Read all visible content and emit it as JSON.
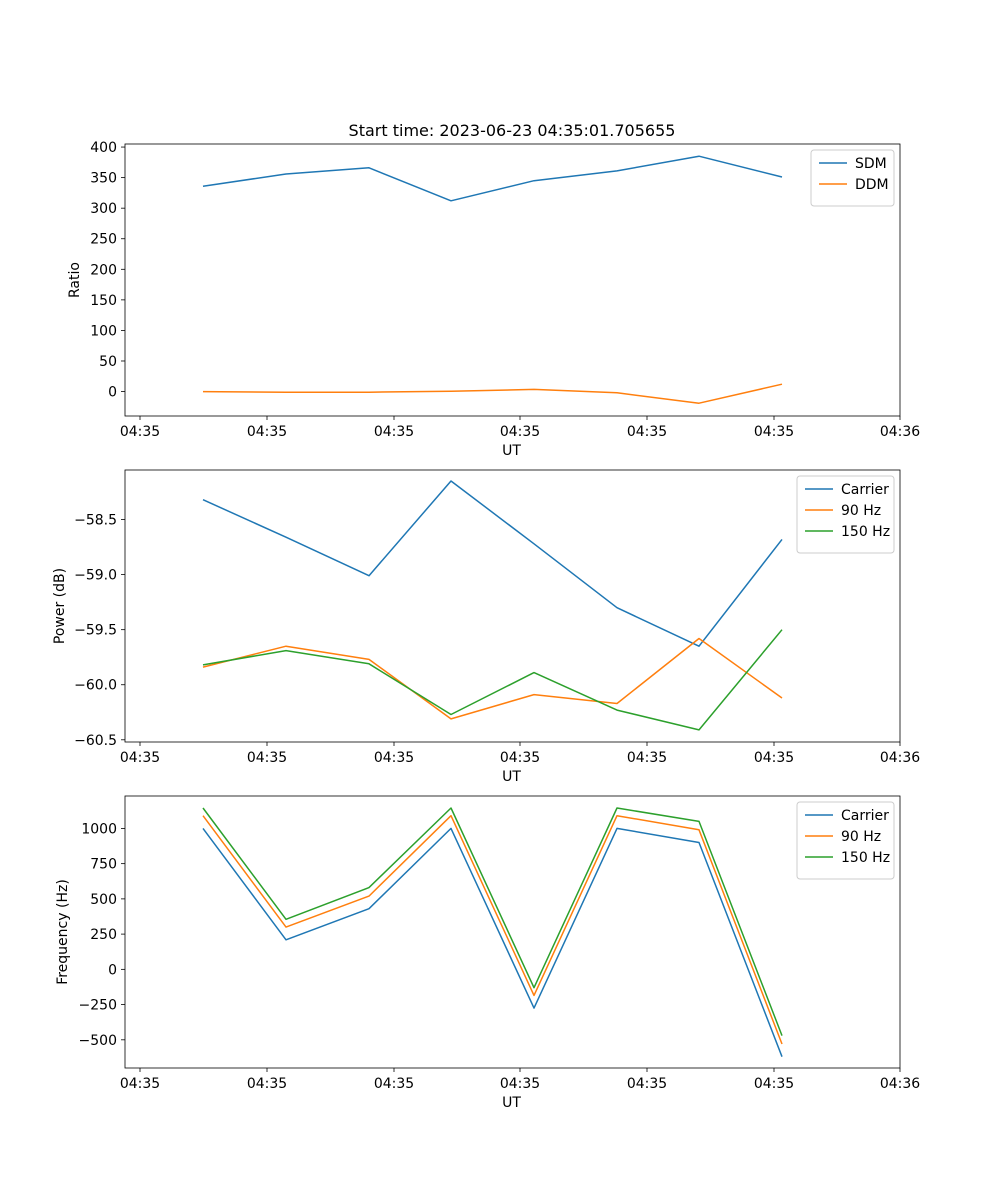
{
  "figure_title": "Start time: 2023-06-23 04:35:01.705655",
  "colors": {
    "blue": "#1f77b4",
    "orange": "#ff7f0e",
    "green": "#2ca02c"
  },
  "chart_data": [
    {
      "type": "line",
      "title": "Start time: 2023-06-23 04:35:01.705655",
      "xlabel": "UT",
      "ylabel": "Ratio",
      "x_ticks": [
        "04:35",
        "04:35",
        "04:35",
        "04:35",
        "04:35",
        "04:35",
        "04:36"
      ],
      "y_ticks": [
        0,
        50,
        100,
        150,
        200,
        250,
        300,
        350,
        400
      ],
      "ylim": [
        -40,
        405
      ],
      "legend_position": "top-right",
      "series": [
        {
          "name": "SDM",
          "color": "#1f77b4",
          "values": [
            336,
            356,
            366,
            312,
            345,
            361,
            385,
            351
          ]
        },
        {
          "name": "DDM",
          "color": "#ff7f0e",
          "values": [
            0,
            -1,
            -1,
            0.5,
            3.5,
            -2,
            -19,
            12
          ]
        }
      ]
    },
    {
      "type": "line",
      "title": "",
      "xlabel": "UT",
      "ylabel": "Power (dB)",
      "x_ticks": [
        "04:35",
        "04:35",
        "04:35",
        "04:35",
        "04:35",
        "04:35",
        "04:36"
      ],
      "y_ticks": [
        -58.5,
        -59.0,
        -59.5,
        -60.0,
        -60.5
      ],
      "y_tick_labels": [
        "−58.5",
        "−59.0",
        "−59.5",
        "−60.0",
        "−60.5"
      ],
      "ylim": [
        -60.52,
        -58.05
      ],
      "legend_position": "top-right",
      "series": [
        {
          "name": "Carrier",
          "color": "#1f77b4",
          "values": [
            -58.32,
            -58.66,
            -59.01,
            -58.15,
            -58.72,
            -59.3,
            -59.65,
            -58.68
          ]
        },
        {
          "name": "90 Hz",
          "color": "#ff7f0e",
          "values": [
            -59.84,
            -59.65,
            -59.77,
            -60.31,
            -60.09,
            -60.17,
            -59.58,
            -60.12
          ]
        },
        {
          "name": "150 Hz",
          "color": "#2ca02c",
          "values": [
            -59.82,
            -59.69,
            -59.81,
            -60.27,
            -59.89,
            -60.23,
            -60.41,
            -59.5
          ]
        }
      ]
    },
    {
      "type": "line",
      "title": "",
      "xlabel": "UT",
      "ylabel": "Frequency (Hz)",
      "x_ticks": [
        "04:35",
        "04:35",
        "04:35",
        "04:35",
        "04:35",
        "04:35",
        "04:36"
      ],
      "y_ticks": [
        1000,
        750,
        500,
        250,
        0,
        -250,
        -500
      ],
      "y_tick_labels": [
        "1000",
        "750",
        "500",
        "250",
        "0",
        "−250",
        "−500"
      ],
      "ylim": [
        -700,
        1230
      ],
      "legend_position": "top-right",
      "series": [
        {
          "name": "Carrier",
          "color": "#1f77b4",
          "values": [
            1000,
            210,
            430,
            1000,
            -275,
            1000,
            900,
            -620
          ]
        },
        {
          "name": "90 Hz",
          "color": "#ff7f0e",
          "values": [
            1090,
            300,
            520,
            1090,
            -185,
            1090,
            990,
            -530
          ]
        },
        {
          "name": "150 Hz",
          "color": "#2ca02c",
          "values": [
            1145,
            355,
            580,
            1145,
            -130,
            1145,
            1050,
            -470
          ]
        }
      ]
    }
  ]
}
